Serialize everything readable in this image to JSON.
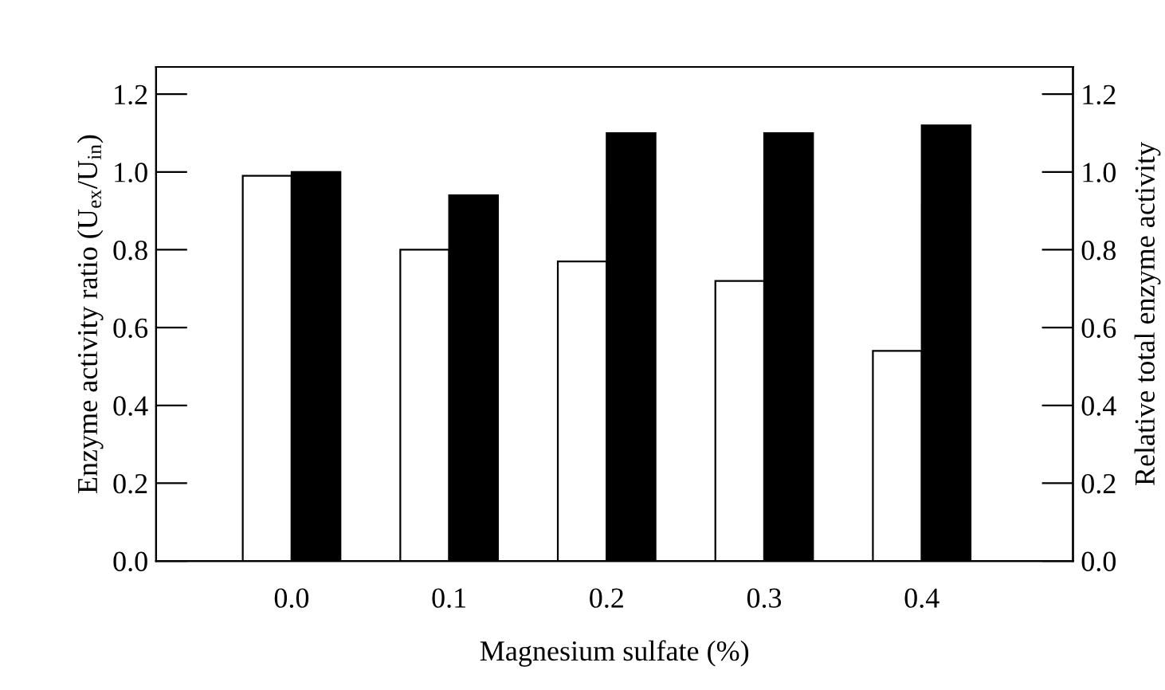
{
  "chart_data": {
    "type": "bar",
    "xlabel": "Magnesium sulfate (%)",
    "ylabel": "Enzyme activity ratio (U$_{ex}$/U$_{in}$)",
    "y2label": "Relative total enzyme activity",
    "categories": [
      "0.0",
      "0.1",
      "0.2",
      "0.3",
      "0.4"
    ],
    "series": [
      {
        "color": "#ffffff",
        "values": [
          0.99,
          0.8,
          0.77,
          0.72,
          0.54
        ]
      },
      {
        "color": "#000000",
        "values": [
          1.0,
          0.94,
          1.1,
          1.1,
          1.12
        ]
      }
    ],
    "ylim": [
      0,
      1.27
    ],
    "yticks": [
      {
        "value": 0,
        "label": "0.0"
      },
      {
        "value": 0.2,
        "label": "0.2"
      },
      {
        "value": 0.4,
        "label": "0.4"
      },
      {
        "value": 0.6,
        "label": "0.6"
      },
      {
        "value": 0.8,
        "label": "0.8"
      },
      {
        "value": 1.0,
        "label": "1.0"
      },
      {
        "value": 1.2,
        "label": "1.2"
      }
    ],
    "y2lim": [
      0,
      1.27
    ],
    "y2ticks": [
      {
        "value": 0,
        "label": "0.0"
      },
      {
        "value": 0.2,
        "label": "0.2"
      },
      {
        "value": 0.4,
        "label": "0.4"
      },
      {
        "value": 0.6,
        "label": "0.6"
      },
      {
        "value": 0.8,
        "label": "0.8"
      },
      {
        "value": 1.0,
        "label": "1.0"
      },
      {
        "value": 1.2,
        "label": "1.2"
      }
    ],
    "grid": false,
    "legend": false
  }
}
